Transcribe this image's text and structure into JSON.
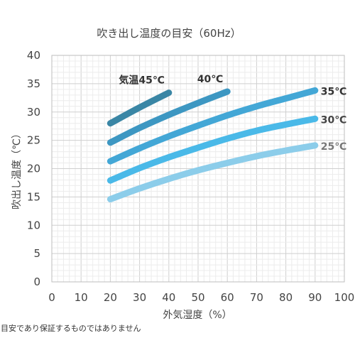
{
  "chart_data": {
    "type": "line",
    "title": "吹き出し温度の目安（60Hz）",
    "xlabel": "外気湿度（%）",
    "ylabel": "吹出し温度（℃）",
    "xlim": [
      0,
      100
    ],
    "ylim": [
      0,
      40
    ],
    "x_ticks": [
      "0",
      "10",
      "20",
      "30",
      "40",
      "50",
      "60",
      "70",
      "80",
      "90",
      "100"
    ],
    "y_ticks": [
      "0",
      "5",
      "10",
      "15",
      "20",
      "25",
      "30",
      "35",
      "40"
    ],
    "grid": true,
    "series": [
      {
        "name": "気温45℃",
        "color": "#3a86a5",
        "x": [
          20,
          30,
          40
        ],
        "y": [
          28.0,
          30.8,
          33.4
        ]
      },
      {
        "name": "40℃",
        "color": "#3d97c2",
        "x": [
          20,
          30,
          40,
          50,
          60
        ],
        "y": [
          24.6,
          27.2,
          29.5,
          31.6,
          33.6
        ]
      },
      {
        "name": "35℃",
        "color": "#43a7d6",
        "x": [
          20,
          30,
          40,
          50,
          60,
          70,
          80,
          90
        ],
        "y": [
          21.3,
          23.6,
          25.7,
          27.6,
          29.4,
          31.0,
          32.4,
          33.8
        ]
      },
      {
        "name": "30℃",
        "color": "#4ab9e8",
        "x": [
          20,
          30,
          40,
          50,
          60,
          70,
          80,
          90
        ],
        "y": [
          17.9,
          20.1,
          22.0,
          23.7,
          25.3,
          26.7,
          27.8,
          28.8
        ]
      },
      {
        "name": "25℃",
        "color": "#8ccdea",
        "x": [
          20,
          30,
          40,
          50,
          60,
          70,
          80,
          90
        ],
        "y": [
          14.6,
          16.5,
          18.2,
          19.7,
          21.0,
          22.2,
          23.2,
          24.1
        ]
      }
    ],
    "label_colors": [
      "#333333",
      "#333333",
      "#333333",
      "#444444",
      "#777777"
    ]
  },
  "footnote": "目安であり保証するものではありません"
}
